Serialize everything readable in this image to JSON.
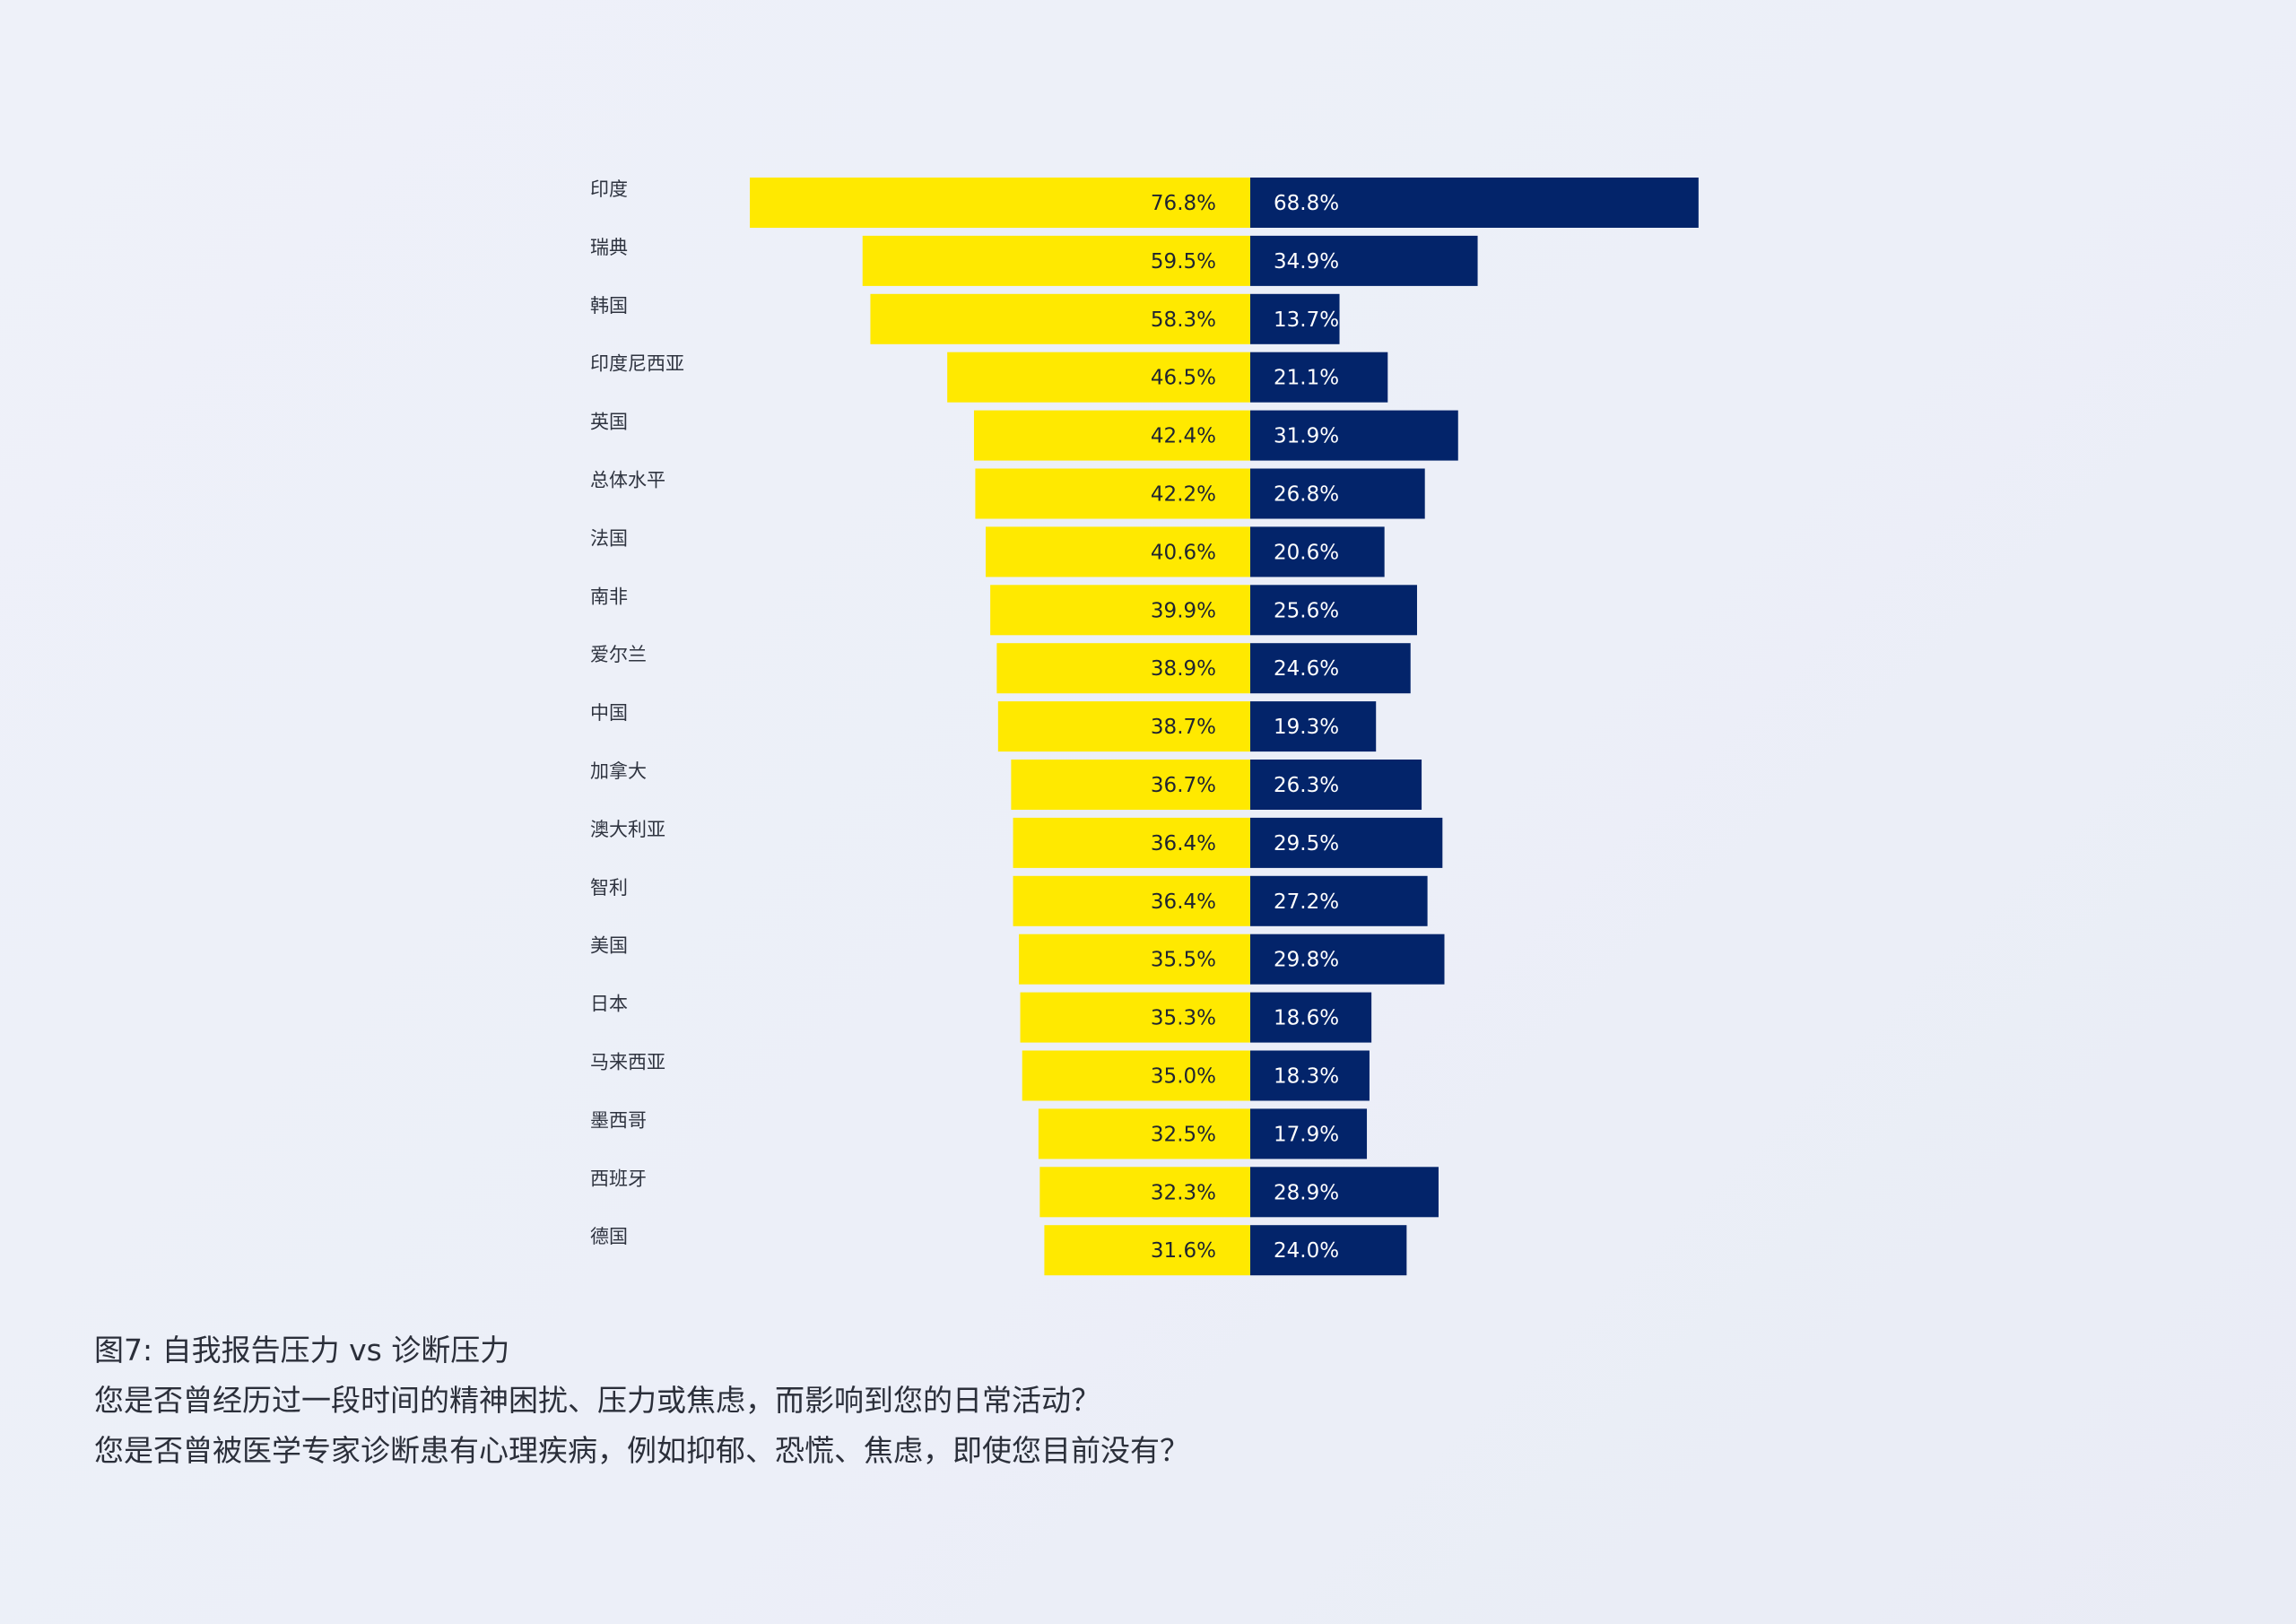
{
  "colors": {
    "self_reported": "#ffe900",
    "diagnosed": "#03246a",
    "self_label_text": "#1f2430",
    "diag_label_text": "#ffffff",
    "category_text": "#2f3440"
  },
  "chart_data": {
    "type": "bar",
    "orientation": "horizontal-diverging",
    "categories": [
      "印度",
      "瑞典",
      "韩国",
      "印度尼西亚",
      "英国",
      "总体水平",
      "法国",
      "南非",
      "爱尔兰",
      "中国",
      "加拿大",
      "澳大利亚",
      "智利",
      "美国",
      "日本",
      "马来西亚",
      "墨西哥",
      "西班牙",
      "德国"
    ],
    "series": [
      {
        "values": [
          76.8,
          59.5,
          58.3,
          46.5,
          42.4,
          42.2,
          40.6,
          39.9,
          38.9,
          38.7,
          36.7,
          36.4,
          36.4,
          35.5,
          35.3,
          35.0,
          32.5,
          32.3,
          31.6
        ],
        "labels": [
          "76.8%",
          "59.5%",
          "58.3%",
          "46.5%",
          "42.4%",
          "42.2%",
          "40.6%",
          "39.9%",
          "38.9%",
          "38.7%",
          "36.7%",
          "36.4%",
          "36.4%",
          "35.5%",
          "35.3%",
          "35.0%",
          "32.5%",
          "32.3%",
          "31.6%"
        ],
        "direction": "left"
      },
      {
        "values": [
          68.8,
          34.9,
          13.7,
          21.1,
          31.9,
          26.8,
          20.6,
          25.6,
          24.6,
          19.3,
          26.3,
          29.5,
          27.2,
          29.8,
          18.6,
          18.3,
          17.9,
          28.9,
          24.0
        ],
        "labels": [
          "68.8%",
          "34.9%",
          "13.7%",
          "21.1%",
          "31.9%",
          "26.8%",
          "20.6%",
          "25.6%",
          "24.6%",
          "19.3%",
          "26.3%",
          "29.5%",
          "27.2%",
          "29.8%",
          "18.6%",
          "18.3%",
          "17.9%",
          "28.9%",
          "24.0%"
        ],
        "direction": "right"
      }
    ],
    "unit": "%",
    "grid": false,
    "legend": "none"
  },
  "caption": {
    "title": "图7: 自我报告压力 vs 诊断压力",
    "question_1": "您是否曾经历过一段时间的精神困扰、压力或焦虑，而影响到您的日常活动？",
    "question_2": "您是否曾被医学专家诊断患有心理疾病，例如抑郁、恐慌、焦虑，即使您目前没有？"
  }
}
